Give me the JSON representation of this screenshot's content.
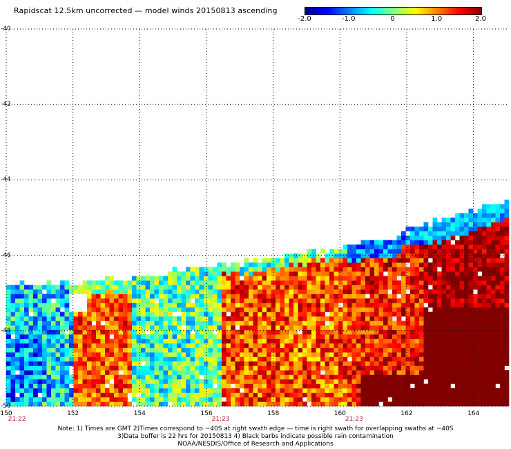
{
  "title": "Rapidscat 12.5km uncorrected — model winds 20150813 ascending",
  "colorbar": {
    "ticks": [
      {
        "label": "-2.0",
        "value": -2.0
      },
      {
        "label": "-1.0",
        "value": -1.0
      },
      {
        "label": "0",
        "value": 0
      },
      {
        "label": "1.0",
        "value": 1.0
      },
      {
        "label": "2.0",
        "value": 2.0
      }
    ],
    "colors": [
      "#00008f",
      "#0000ff",
      "#0080ff",
      "#00ffff",
      "#80ff80",
      "#ffff00",
      "#ff8000",
      "#ff0000",
      "#800000"
    ]
  },
  "axes": {
    "y_ticks": [
      {
        "label": "-40",
        "value": -40
      },
      {
        "label": "-42",
        "value": -42
      },
      {
        "label": "-44",
        "value": -44
      },
      {
        "label": "-46",
        "value": -46
      },
      {
        "label": "-48",
        "value": -48
      },
      {
        "label": "-50",
        "value": -50
      }
    ],
    "x_ticks": [
      {
        "label": "150",
        "value": 150
      },
      {
        "label": "152",
        "value": 152
      },
      {
        "label": "154",
        "value": 154
      },
      {
        "label": "156",
        "value": 156
      },
      {
        "label": "158",
        "value": 158
      },
      {
        "label": "160",
        "value": 160
      },
      {
        "label": "162",
        "value": 162
      },
      {
        "label": "164",
        "value": 164
      }
    ],
    "lon_range": [
      150,
      165
    ],
    "lat_range": [
      -50,
      -40
    ]
  },
  "swath_times": [
    {
      "label": "21:22",
      "lon": 150.2
    },
    {
      "label": "21:23",
      "lon": 156.3
    },
    {
      "label": "21:23",
      "lon": 160.3
    }
  ],
  "notes": [
    "Note: 1) Times are GMT 2)Times correspond to ~40S at right swath edge — time is right swath for overlapping swaths at ~40S",
    "3)Data buffer is 22 hrs for 20150813 4) Black barbs indicate possible rain contamination",
    "NOAA/NESDIS/Office of Research and Applications"
  ]
}
